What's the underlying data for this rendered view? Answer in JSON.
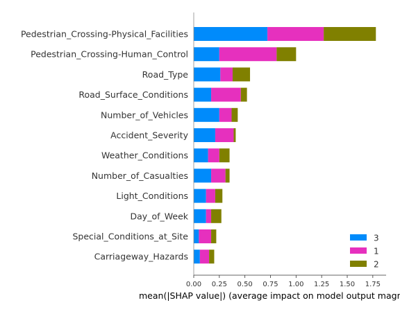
{
  "chart_data": {
    "type": "bar",
    "orientation": "horizontal",
    "stacked": true,
    "categories": [
      "Pedestrian_Crossing-Physical_Facilities",
      "Pedestrian_Crossing-Human_Control",
      "Road_Type",
      "Road_Surface_Conditions",
      "Number_of_Vehicles",
      "Accident_Severity",
      "Weather_Conditions",
      "Number_of_Casualties",
      "Light_Conditions",
      "Day_of_Week",
      "Special_Conditions_at_Site",
      "Carriageway_Hazards"
    ],
    "series": [
      {
        "name": "3",
        "color": "#008bfb",
        "values": [
          0.72,
          0.25,
          0.26,
          0.17,
          0.25,
          0.21,
          0.14,
          0.17,
          0.12,
          0.12,
          0.05,
          0.06
        ]
      },
      {
        "name": "1",
        "color": "#e630be",
        "values": [
          0.55,
          0.56,
          0.12,
          0.29,
          0.12,
          0.18,
          0.11,
          0.14,
          0.09,
          0.05,
          0.12,
          0.09
        ]
      },
      {
        "name": "2",
        "color": "#808000",
        "values": [
          0.51,
          0.19,
          0.17,
          0.06,
          0.06,
          0.02,
          0.1,
          0.04,
          0.07,
          0.1,
          0.05,
          0.05
        ]
      }
    ],
    "xlabel": "mean(|SHAP value|) (average impact on model output magnitude)",
    "xlim": [
      0,
      1.88
    ],
    "xticks": [
      "0.00",
      "0.25",
      "0.50",
      "0.75",
      "1.00",
      "1.25",
      "1.50",
      "1.75"
    ],
    "legend": {
      "placement": "bottom-right",
      "entries": [
        "3",
        "1",
        "2"
      ]
    },
    "grid": false
  }
}
